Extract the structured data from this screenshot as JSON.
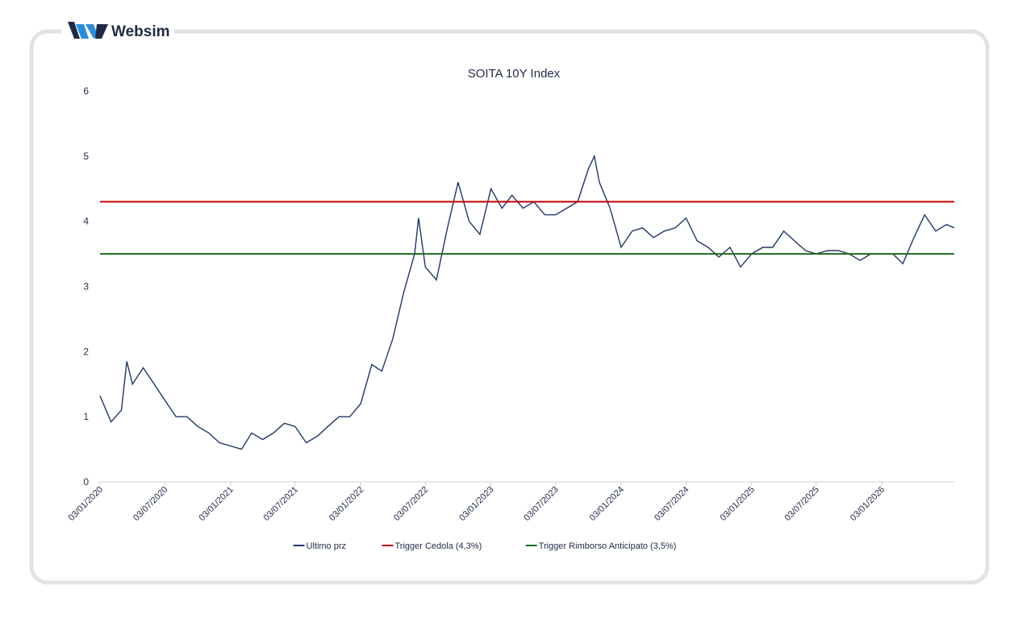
{
  "brand": "Websim",
  "chart_data": {
    "type": "line",
    "title": "SOITA 10Y Index",
    "x": [
      "03/01/2020",
      "03/02/2020",
      "03/03/2020",
      "18/03/2020",
      "03/04/2020",
      "03/05/2020",
      "03/06/2020",
      "03/07/2020",
      "03/08/2020",
      "03/09/2020",
      "03/10/2020",
      "03/11/2020",
      "03/12/2020",
      "03/01/2021",
      "03/02/2021",
      "03/03/2021",
      "03/04/2021",
      "03/05/2021",
      "03/06/2021",
      "03/07/2021",
      "03/08/2021",
      "03/09/2021",
      "03/10/2021",
      "03/11/2021",
      "03/12/2021",
      "03/01/2022",
      "03/02/2022",
      "03/03/2022",
      "03/04/2022",
      "03/05/2022",
      "03/06/2022",
      "14/06/2022",
      "03/07/2022",
      "03/08/2022",
      "03/09/2022",
      "03/10/2022",
      "03/11/2022",
      "03/12/2022",
      "03/01/2023",
      "03/02/2023",
      "03/03/2023",
      "03/04/2023",
      "03/05/2023",
      "03/06/2023",
      "03/07/2023",
      "03/08/2023",
      "03/09/2023",
      "03/10/2023",
      "20/10/2023",
      "03/11/2023",
      "03/12/2023",
      "03/01/2024",
      "03/02/2024",
      "03/03/2024",
      "03/04/2024",
      "03/05/2024",
      "03/06/2024",
      "03/07/2024",
      "03/08/2024",
      "03/09/2024",
      "03/10/2024",
      "03/11/2024",
      "03/12/2024",
      "03/01/2025",
      "03/02/2025",
      "03/03/2025",
      "03/04/2025",
      "03/05/2025",
      "03/06/2025",
      "03/07/2025",
      "03/08/2025",
      "03/09/2025",
      "03/10/2025",
      "03/11/2025",
      "03/12/2025",
      "03/01/2026",
      "03/02/2026",
      "03/03/2026",
      "03/04/2026",
      "03/05/2026",
      "03/06/2026",
      "03/07/2026",
      "25/07/2026"
    ],
    "series": [
      {
        "name": "Ultimo prz",
        "color": "#1f3864",
        "values": [
          1.32,
          0.92,
          1.1,
          1.85,
          1.5,
          1.75,
          1.5,
          1.25,
          1.0,
          1.0,
          0.85,
          0.75,
          0.6,
          0.55,
          0.5,
          0.75,
          0.65,
          0.75,
          0.9,
          0.85,
          0.6,
          0.7,
          0.85,
          1.0,
          1.0,
          1.2,
          1.8,
          1.7,
          2.2,
          2.9,
          3.5,
          4.05,
          3.3,
          3.1,
          3.9,
          4.6,
          4.0,
          3.8,
          4.5,
          4.2,
          4.4,
          4.2,
          4.3,
          4.1,
          4.1,
          4.2,
          4.3,
          4.8,
          5.0,
          4.6,
          4.2,
          3.6,
          3.85,
          3.9,
          3.75,
          3.85,
          3.9,
          4.05,
          3.7,
          3.6,
          3.45,
          3.6,
          3.3,
          3.5,
          3.6,
          3.6,
          3.85,
          3.7,
          3.55,
          3.5,
          3.55,
          3.55,
          3.5,
          3.4,
          3.5,
          3.5,
          3.5,
          3.35,
          3.75,
          4.1,
          3.85,
          3.95,
          3.9
        ]
      }
    ],
    "hlines": [
      {
        "name": "Trigger Cedola (4,3%)",
        "color": "#c00000",
        "value": 4.3
      },
      {
        "name": "Trigger Rimborso Anticipato (3,5%)",
        "color": "#1e6b1e",
        "value": 3.5
      }
    ],
    "xlim": [
      "03/01/2020",
      "25/07/2026"
    ],
    "xticks": [
      "03/01/2020",
      "03/07/2020",
      "03/01/2021",
      "03/07/2021",
      "03/01/2022",
      "03/07/2022",
      "03/01/2023",
      "03/07/2023",
      "03/01/2024",
      "03/07/2024",
      "03/01/2025",
      "03/07/2025",
      "03/01/2026"
    ],
    "ylim": [
      0,
      6
    ],
    "yticks": [
      0,
      1,
      2,
      3,
      4,
      5,
      6
    ],
    "grid": false,
    "legend": "bottom"
  }
}
